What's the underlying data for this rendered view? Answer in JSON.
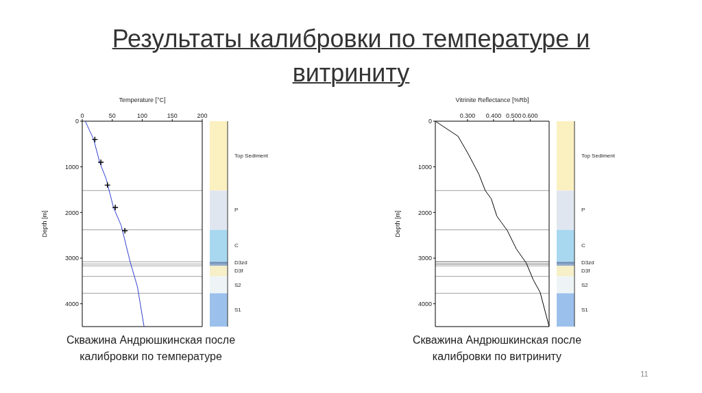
{
  "chart_data": [
    {
      "type": "line",
      "title": "Результаты калибровки по температуре и витриниту",
      "xlabel": "Temperature [°C]",
      "ylabel": "Depth [m]",
      "xlim": [
        0,
        200
      ],
      "xticks": [
        0,
        50,
        100,
        150,
        200
      ],
      "ylim": [
        4500,
        0
      ],
      "yticks": [
        0,
        1000,
        2000,
        3000,
        4000
      ],
      "series": [
        {
          "color": "#3040d0",
          "marker": "none",
          "x": [
            5,
            19,
            29,
            40,
            52,
            65,
            80,
            92,
            103
          ],
          "values": [
            0,
            400,
            900,
            1270,
            1890,
            2290,
            3090,
            3630,
            4500
          ]
        },
        {
          "type": "scatter",
          "color": "#000000",
          "marker": "cross",
          "x": [
            21,
            31,
            42,
            55,
            71
          ],
          "values": [
            400,
            900,
            1400,
            1890,
            2400
          ]
        }
      ],
      "ref_lines": [
        {
          "axis": "y",
          "value": 1520,
          "color": "#a0a0a0"
        },
        {
          "axis": "y",
          "value": 2380,
          "color": "#a0a0a0"
        },
        {
          "axis": "y",
          "value": 3080,
          "color": "#a0a0a0"
        },
        {
          "axis": "y",
          "value": 3130,
          "color": "#a0a0a0"
        },
        {
          "axis": "y",
          "value": 3170,
          "color": "#a0a0a0"
        },
        {
          "axis": "y",
          "value": 3400,
          "color": "#a0a0a0"
        },
        {
          "axis": "y",
          "value": 3770,
          "color": "#a0a0a0"
        }
      ],
      "annotations": [
        "Top Sediment",
        "P",
        "C",
        "D3zd",
        "D3f",
        "S2",
        "S1",
        "Скважина Андрюшкинская после калибровки по температуре"
      ]
    },
    {
      "type": "line",
      "xlabel": "Vitrinite Reflectance [%Rb]",
      "ylabel": "Depth [m]",
      "log": "x",
      "xlim": [
        0.21,
        0.74
      ],
      "xticks": [
        {
          "value": 0.3,
          "label": "0.300"
        },
        {
          "value": 0.4,
          "label": "0.400"
        },
        {
          "value": 0.5,
          "label": "0.500"
        },
        {
          "value": 0.6,
          "label": "0.600"
        }
      ],
      "ylim": [
        4500,
        0
      ],
      "yticks": [
        0,
        1000,
        2000,
        3000,
        4000
      ],
      "series": [
        {
          "color": "#000000",
          "marker": "none",
          "x": [
            0.21,
            0.27,
            0.3,
            0.34,
            0.365,
            0.39,
            0.415,
            0.435,
            0.465,
            0.515,
            0.575,
            0.62,
            0.67,
            0.74
          ],
          "values": [
            0,
            330,
            690,
            1160,
            1520,
            1700,
            2080,
            2210,
            2390,
            2800,
            3110,
            3470,
            3750,
            4500
          ]
        }
      ],
      "ref_lines": [
        {
          "axis": "y",
          "value": 1520,
          "color": "#a0a0a0"
        },
        {
          "axis": "y",
          "value": 2380,
          "color": "#a0a0a0"
        },
        {
          "axis": "y",
          "value": 3080,
          "color": "#606060"
        },
        {
          "axis": "y",
          "value": 3130,
          "color": "#606060"
        },
        {
          "axis": "y",
          "value": 3170,
          "color": "#a0a0a0"
        },
        {
          "axis": "y",
          "value": 3400,
          "color": "#a0a0a0"
        },
        {
          "axis": "y",
          "value": 3770,
          "color": "#a0a0a0"
        }
      ],
      "annotations": [
        "Top Sediment",
        "P",
        "C",
        "D3zd",
        "D3f",
        "S2",
        "S1",
        "Скважина Андрюшкинская после калибровки по витриниту",
        "11"
      ]
    }
  ]
}
